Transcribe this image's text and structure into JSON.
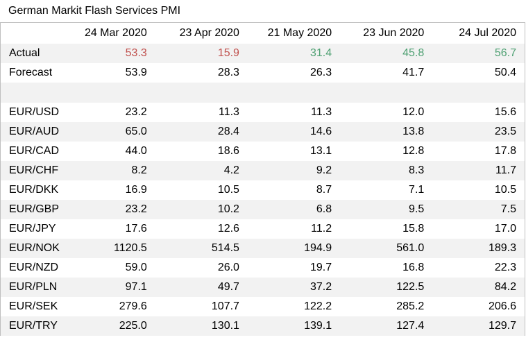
{
  "title": "German Markit Flash Services PMI",
  "columns": [
    "24 Mar 2020",
    "23 Apr 2020",
    "21 May 2020",
    "23 Jun 2020",
    "24 Jul 2020"
  ],
  "colors": {
    "negative": "#c0504d",
    "positive": "#4ea072",
    "shade": "#f2f2f2",
    "border": "#bfbfbf"
  },
  "actual": {
    "label": "Actual",
    "values": [
      "53.3",
      "15.9",
      "31.4",
      "45.8",
      "56.7"
    ],
    "tones": [
      "red",
      "red",
      "green",
      "green",
      "green"
    ]
  },
  "forecast": {
    "label": "Forecast",
    "values": [
      "53.9",
      "28.3",
      "26.3",
      "41.7",
      "50.4"
    ]
  },
  "pairs": [
    {
      "label": "EUR/USD",
      "values": [
        "23.2",
        "11.3",
        "11.3",
        "12.0",
        "15.6"
      ]
    },
    {
      "label": "EUR/AUD",
      "values": [
        "65.0",
        "28.4",
        "14.6",
        "13.8",
        "23.5"
      ]
    },
    {
      "label": "EUR/CAD",
      "values": [
        "44.0",
        "18.6",
        "13.1",
        "12.8",
        "17.8"
      ]
    },
    {
      "label": "EUR/CHF",
      "values": [
        "8.2",
        "4.2",
        "9.2",
        "8.3",
        "11.7"
      ]
    },
    {
      "label": "EUR/DKK",
      "values": [
        "16.9",
        "10.5",
        "8.7",
        "7.1",
        "10.5"
      ]
    },
    {
      "label": "EUR/GBP",
      "values": [
        "23.2",
        "10.2",
        "6.8",
        "9.5",
        "7.5"
      ]
    },
    {
      "label": "EUR/JPY",
      "values": [
        "17.6",
        "12.6",
        "11.2",
        "15.8",
        "17.0"
      ]
    },
    {
      "label": "EUR/NOK",
      "values": [
        "1120.5",
        "514.5",
        "194.9",
        "561.0",
        "189.3"
      ]
    },
    {
      "label": "EUR/NZD",
      "values": [
        "59.0",
        "26.0",
        "19.7",
        "16.8",
        "22.3"
      ]
    },
    {
      "label": "EUR/PLN",
      "values": [
        "97.1",
        "49.7",
        "37.2",
        "122.5",
        "84.2"
      ]
    },
    {
      "label": "EUR/SEK",
      "values": [
        "279.6",
        "107.7",
        "122.2",
        "285.2",
        "206.6"
      ]
    },
    {
      "label": "EUR/TRY",
      "values": [
        "225.0",
        "130.1",
        "139.1",
        "127.4",
        "129.7"
      ]
    }
  ]
}
